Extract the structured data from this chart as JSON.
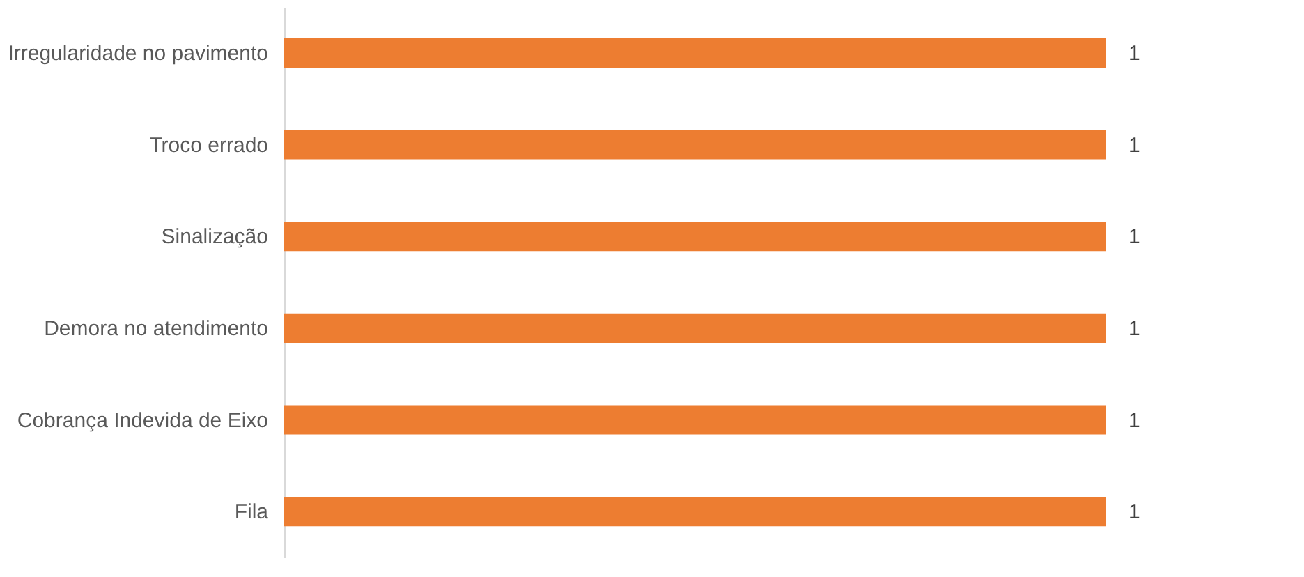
{
  "chart_data": {
    "type": "bar",
    "orientation": "horizontal",
    "categories": [
      "Irregularidade no pavimento",
      "Troco errado",
      "Sinalização",
      "Demora no atendimento",
      "Cobrança Indevida de Eixo",
      "Fila"
    ],
    "values": [
      1,
      1,
      1,
      1,
      1,
      1
    ],
    "color": "#ed7d31",
    "data_labels": true,
    "tick_labels": "y"
  }
}
